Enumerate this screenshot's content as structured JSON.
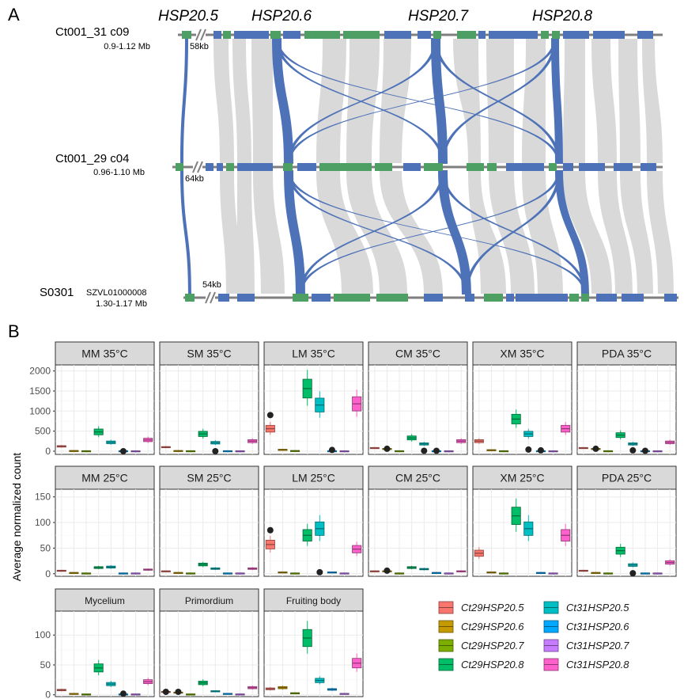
{
  "panelA": {
    "label": "A",
    "genes": [
      "HSP20.5",
      "HSP20.6",
      "HSP20.7",
      "HSP20.8"
    ],
    "tracks": [
      {
        "name": "Ct001_31 c09",
        "name_small": "",
        "range": "0.9-1.12 Mb",
        "gap": "58kb"
      },
      {
        "name": "Ct001_29 c04",
        "name_small": "",
        "range": "0.96-1.10 Mb",
        "gap": "64kb"
      },
      {
        "name": "S0301",
        "name_small": "SZVL01000008",
        "range": "1.30-1.17 Mb",
        "gap": "54kb"
      }
    ],
    "colors": {
      "gene_blue": "#4E72B8",
      "gene_green": "#4E9F63",
      "synteny": "#D9D9D9",
      "line": "#7F7F7F"
    }
  },
  "panelB": {
    "label": "B",
    "ylabel": "Average normalized count",
    "legend": [
      {
        "label": "Ct29HSP20.5",
        "color": "#F8766D"
      },
      {
        "label": "Ct29HSP20.6",
        "color": "#C49A00"
      },
      {
        "label": "Ct29HSP20.7",
        "color": "#7CAE00"
      },
      {
        "label": "Ct29HSP20.8",
        "color": "#00BE67"
      },
      {
        "label": "Ct31HSP20.5",
        "color": "#00BFC4"
      },
      {
        "label": "Ct31HSP20.6",
        "color": "#00A9FF"
      },
      {
        "label": "Ct31HSP20.7",
        "color": "#C77CFF"
      },
      {
        "label": "Ct31HSP20.8",
        "color": "#FF61CC"
      }
    ]
  },
  "chart_data": [
    {
      "type": "box",
      "row": "35°C",
      "yticks": [
        0,
        500,
        1000,
        1500,
        2000
      ],
      "ylim": [
        -80,
        2150
      ],
      "panels": [
        {
          "title": "MM 35°C",
          "medians": [
            120,
            10,
            5,
            480,
            220,
            5,
            3,
            280
          ],
          "outliers": [
            [
              5,
              0
            ]
          ]
        },
        {
          "title": "SM 35°C",
          "medians": [
            100,
            10,
            5,
            430,
            210,
            5,
            3,
            250
          ],
          "outliers": [
            [
              4,
              0
            ]
          ]
        },
        {
          "title": "LM 35°C",
          "medians": [
            560,
            40,
            10,
            1560,
            1150,
            5,
            3,
            1180
          ],
          "outliers": [
            [
              0,
              900
            ],
            [
              5,
              30
            ]
          ]
        },
        {
          "title": "CM 35°C",
          "medians": [
            80,
            60,
            5,
            330,
            180,
            5,
            3,
            250
          ],
          "outliers": [
            [
              1,
              60
            ],
            [
              4,
              10
            ],
            [
              5,
              10
            ]
          ]
        },
        {
          "title": "XM 35°C",
          "medians": [
            250,
            30,
            5,
            800,
            430,
            5,
            3,
            560
          ],
          "outliers": [
            [
              4,
              40
            ],
            [
              5,
              20
            ]
          ]
        },
        {
          "title": "PDA 35°C",
          "medians": [
            80,
            60,
            5,
            400,
            180,
            5,
            3,
            220
          ],
          "outliers": [
            [
              1,
              60
            ],
            [
              4,
              20
            ],
            [
              5,
              10
            ]
          ]
        }
      ]
    },
    {
      "type": "box",
      "row": "25°C",
      "yticks": [
        0,
        50,
        100,
        150
      ],
      "ylim": [
        -5,
        165
      ],
      "panels": [
        {
          "title": "MM 25°C",
          "medians": [
            6,
            2,
            1,
            12,
            13,
            1,
            1,
            8
          ],
          "outliers": []
        },
        {
          "title": "SM 25°C",
          "medians": [
            5,
            2,
            1,
            18,
            10,
            1,
            1,
            10
          ],
          "outliers": []
        },
        {
          "title": "LM 25°C",
          "medians": [
            57,
            3,
            1,
            75,
            88,
            3,
            1,
            48
          ],
          "outliers": [
            [
              0,
              85
            ],
            [
              4,
              3
            ]
          ]
        },
        {
          "title": "CM 25°C",
          "medians": [
            5,
            5,
            1,
            12,
            9,
            2,
            1,
            5
          ],
          "outliers": [
            [
              1,
              6
            ]
          ]
        },
        {
          "title": "XM 25°C",
          "medians": [
            40,
            3,
            1,
            113,
            88,
            2,
            1,
            75
          ],
          "outliers": []
        },
        {
          "title": "PDA 25°C",
          "medians": [
            6,
            2,
            1,
            45,
            17,
            1,
            1,
            22
          ],
          "outliers": [
            [
              4,
              1
            ]
          ]
        }
      ]
    },
    {
      "type": "box",
      "row": "development",
      "yticks": [
        0,
        50,
        100
      ],
      "ylim": [
        -3,
        140
      ],
      "panels": [
        {
          "title": "Mycelium",
          "medians": [
            8,
            2,
            1,
            45,
            18,
            1,
            1,
            22
          ],
          "outliers": [
            [
              5,
              2
            ]
          ]
        },
        {
          "title": "Primordium",
          "medians": [
            5,
            4,
            1,
            20,
            6,
            2,
            1,
            12
          ],
          "outliers": [
            [
              0,
              5
            ],
            [
              1,
              5
            ]
          ]
        },
        {
          "title": "Fruiting body",
          "medians": [
            10,
            12,
            3,
            95,
            24,
            9,
            2,
            53
          ],
          "outliers": []
        }
      ]
    }
  ]
}
